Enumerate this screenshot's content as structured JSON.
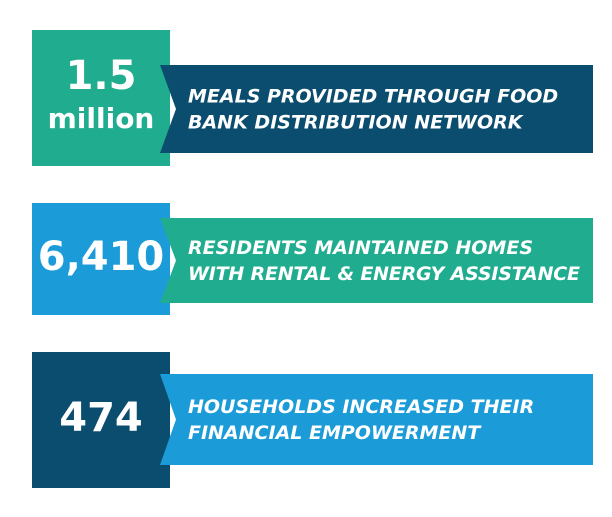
{
  "stats": [
    {
      "value_lines": [
        "1.5",
        "million"
      ],
      "description_lines": [
        "MEALS PROVIDED THROUGH FOOD",
        "BANK DISTRIBUTION NETWORK"
      ],
      "box_color": "#20ad8f",
      "banner_color": "#0b4d6e"
    },
    {
      "value_lines": [
        "6,410"
      ],
      "description_lines": [
        "RESIDENTS MAINTAINED HOMES",
        "WITH RENTAL & ENERGY ASSISTANCE"
      ],
      "box_color": "#1b9bd8",
      "banner_color": "#20ad8f"
    },
    {
      "value_lines": [
        "474"
      ],
      "description_lines": [
        "HOUSEHOLDS INCREASED THEIR",
        "FINANCIAL EMPOWERMENT"
      ],
      "box_color": "#0b4d6e",
      "banner_color": "#1b9bd8"
    }
  ]
}
